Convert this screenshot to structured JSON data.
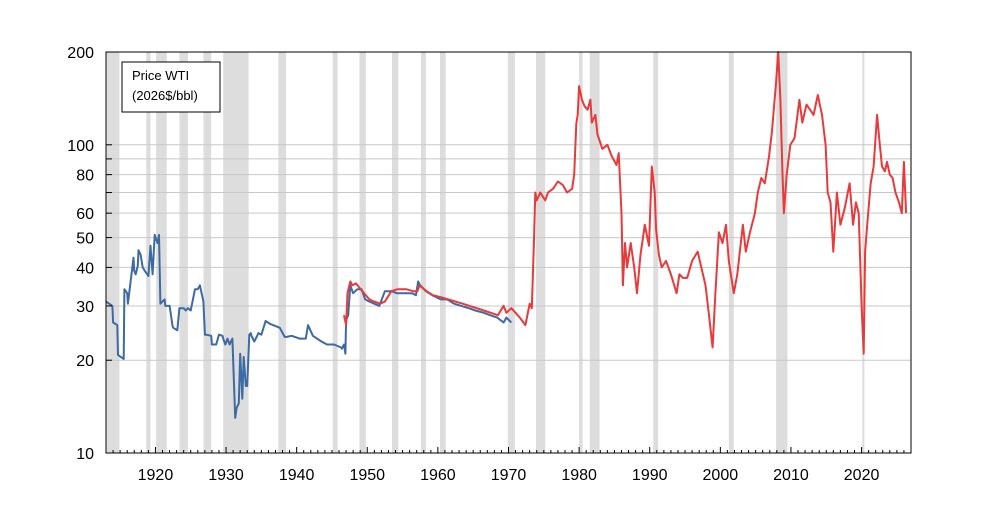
{
  "chart_data": {
    "type": "line",
    "title": "",
    "xlabel": "",
    "ylabel": "",
    "y_scale": "log",
    "xlim": [
      1913,
      2027
    ],
    "ylim": [
      10,
      200
    ],
    "x_ticks": [
      1920,
      1930,
      1940,
      1950,
      1960,
      1970,
      1980,
      1990,
      2000,
      2010,
      2020
    ],
    "y_tick_labels": [
      "10",
      "20",
      "30",
      "40",
      "50",
      "60",
      "80",
      "100",
      "200"
    ],
    "y_ticks": [
      10,
      20,
      30,
      40,
      50,
      60,
      80,
      100,
      200
    ],
    "y_minor_gridlines": [
      70,
      90
    ],
    "grid": true,
    "legend": {
      "position": "top-left",
      "lines": [
        "Price WTI",
        "(2026$/bbl)"
      ]
    },
    "recession_bands": [
      [
        1913.1,
        1914.9
      ],
      [
        1918.7,
        1919.3
      ],
      [
        1920.1,
        1921.6
      ],
      [
        1923.4,
        1924.6
      ],
      [
        1926.8,
        1927.9
      ],
      [
        1929.6,
        1933.2
      ],
      [
        1937.4,
        1938.5
      ],
      [
        1945.1,
        1945.8
      ],
      [
        1948.9,
        1949.8
      ],
      [
        1953.5,
        1954.4
      ],
      [
        1957.6,
        1958.3
      ],
      [
        1960.3,
        1961.1
      ],
      [
        1969.9,
        1970.9
      ],
      [
        1973.9,
        1975.2
      ],
      [
        1980.0,
        1980.5
      ],
      [
        1981.5,
        1982.9
      ],
      [
        1990.5,
        1991.2
      ],
      [
        2001.2,
        2001.9
      ],
      [
        2007.9,
        2009.5
      ],
      [
        2020.1,
        2020.4
      ]
    ],
    "series": [
      {
        "color": "#3d6aa3",
        "x": [
          1913.0,
          1913.9,
          1914.0,
          1914.6,
          1914.7,
          1915.5,
          1915.6,
          1916.0,
          1916.1,
          1916.9,
          1917.0,
          1917.2,
          1917.5,
          1917.6,
          1917.9,
          1918.2,
          1918.5,
          1919.0,
          1919.3,
          1919.6,
          1919.9,
          1920.3,
          1920.5,
          1920.7,
          1921.0,
          1921.3,
          1921.4,
          1922.0,
          1922.4,
          1922.5,
          1923.1,
          1923.4,
          1924.0,
          1924.3,
          1924.6,
          1925.0,
          1925.6,
          1926.0,
          1926.3,
          1926.8,
          1927.0,
          1927.2,
          1927.9,
          1928.0,
          1928.6,
          1929.0,
          1929.5,
          1929.6,
          1929.9,
          1930.2,
          1930.5,
          1930.9,
          1931.3,
          1931.5,
          1931.8,
          1932.0,
          1932.3,
          1932.5,
          1932.8,
          1933.0,
          1933.3,
          1933.5,
          1933.6,
          1934.0,
          1934.6,
          1935.0,
          1935.6,
          1936.3,
          1937.0,
          1937.6,
          1938.3,
          1938.6,
          1939.3,
          1940.4,
          1941.3,
          1941.6,
          1942.3,
          1943.5,
          1944.3,
          1945.3,
          1946.3,
          1946.4,
          1946.7,
          1946.9,
          1947.0,
          1947.3,
          1947.6,
          1948.0,
          1948.6,
          1949.2,
          1949.7,
          1950.3,
          1951.0,
          1951.7,
          1952.5,
          1953.4,
          1954.2,
          1955.4,
          1956.3,
          1956.9,
          1957.2,
          1957.5,
          1958.3,
          1959.2,
          1960.4,
          1961.3,
          1962.3,
          1963.3,
          1964.4,
          1965.3,
          1966.5,
          1967.4,
          1968.4,
          1969.3,
          1969.7,
          1970.4
        ],
        "values": [
          31,
          30,
          26.5,
          26,
          20.8,
          20.2,
          34,
          33,
          30.5,
          43,
          39,
          38,
          40.5,
          45.5,
          44,
          40,
          39,
          37.5,
          47,
          38,
          51,
          48,
          51,
          30.5,
          31,
          31.5,
          30,
          30,
          26,
          25.5,
          25,
          29.5,
          29.5,
          29,
          29.5,
          29,
          34,
          34,
          35,
          31,
          24.2,
          24.2,
          24,
          22.5,
          22.5,
          24.2,
          24,
          23.5,
          22.5,
          23.5,
          22.5,
          23.5,
          13,
          14,
          14.5,
          21,
          15,
          20.5,
          16.5,
          16.5,
          24.2,
          24.5,
          24,
          23,
          24.5,
          24.2,
          26.8,
          26.2,
          25.8,
          25.5,
          23.8,
          23.8,
          24,
          23.5,
          23.5,
          26,
          24,
          23,
          22.5,
          22.5,
          22,
          21.8,
          22.5,
          21,
          27,
          28,
          35,
          33,
          34,
          34,
          31.5,
          31,
          30.5,
          30,
          33.5,
          33.5,
          33,
          33,
          33,
          32.5,
          36,
          35,
          33.5,
          32.5,
          31.5,
          31.5,
          30.5,
          30,
          29.5,
          29,
          28.5,
          28,
          27.5,
          26.5,
          27.5,
          26.5
        ]
      },
      {
        "color": "#e83a3a",
        "x": [
          1946.7,
          1947.0,
          1947.2,
          1947.6,
          1947.9,
          1948.4,
          1949.3,
          1950.3,
          1951.0,
          1951.8,
          1952.5,
          1953.4,
          1954.3,
          1955.5,
          1956.5,
          1957.1,
          1957.4,
          1958.4,
          1959.3,
          1960.5,
          1961.5,
          1962.5,
          1963.5,
          1964.5,
          1965.5,
          1966.5,
          1967.5,
          1968.5,
          1969.3,
          1969.7,
          1970.4,
          1971.0,
          1971.6,
          1972.4,
          1973.0,
          1973.3,
          1973.6,
          1973.8,
          1974.0,
          1974.5,
          1975.2,
          1975.6,
          1976.3,
          1977.0,
          1977.7,
          1978.3,
          1979.0,
          1979.3,
          1979.6,
          1979.8,
          1980.0,
          1980.4,
          1980.8,
          1981.2,
          1981.6,
          1981.8,
          1982.3,
          1982.6,
          1983.3,
          1984.0,
          1984.6,
          1985.3,
          1985.6,
          1986.0,
          1986.2,
          1986.5,
          1986.8,
          1987.3,
          1987.8,
          1988.2,
          1988.7,
          1989.3,
          1989.9,
          1990.3,
          1990.7,
          1990.9,
          1991.3,
          1991.7,
          1992.3,
          1993.0,
          1993.8,
          1994.2,
          1994.7,
          1995.3,
          1996.0,
          1996.8,
          1997.3,
          1997.9,
          1998.4,
          1998.9,
          1999.3,
          1999.8,
          2000.3,
          2000.8,
          2001.2,
          2001.9,
          2002.4,
          2002.9,
          2003.2,
          2003.6,
          2004.2,
          2004.9,
          2005.3,
          2005.8,
          2006.3,
          2006.9,
          2007.3,
          2007.9,
          2008.2,
          2008.5,
          2008.8,
          2009.0,
          2009.4,
          2009.9,
          2010.5,
          2011.2,
          2011.6,
          2012.2,
          2012.7,
          2013.2,
          2013.8,
          2014.4,
          2014.9,
          2015.2,
          2015.6,
          2016.0,
          2016.5,
          2017.0,
          2017.6,
          2018.3,
          2018.8,
          2019.2,
          2019.6,
          2020.0,
          2020.3,
          2020.5,
          2020.8,
          2021.3,
          2021.7,
          2022.2,
          2022.5,
          2022.9,
          2023.3,
          2023.6,
          2024.0,
          2024.4,
          2024.8,
          2025.3,
          2025.7,
          2026.0,
          2026.3
        ],
        "values": [
          28,
          26,
          33,
          36,
          35,
          35.5,
          33.5,
          31.5,
          31,
          30.5,
          31,
          33.5,
          34,
          34,
          33.5,
          33.5,
          35,
          33.5,
          32.5,
          32,
          31.5,
          31,
          30.5,
          30,
          29.5,
          29,
          28.5,
          28,
          30,
          28.5,
          29.5,
          28.5,
          27.5,
          26,
          30.5,
          29.5,
          48,
          70,
          66,
          70,
          66,
          70,
          72,
          76,
          74,
          70,
          72,
          80,
          117,
          125,
          155,
          140,
          133,
          130,
          140,
          118,
          125,
          108,
          97,
          100,
          92,
          86,
          94,
          60,
          35,
          48,
          40,
          48,
          40,
          33,
          44,
          55,
          47,
          85,
          70,
          53,
          44,
          40,
          42,
          38,
          33,
          38,
          37,
          37,
          42,
          45,
          40,
          35,
          28,
          22,
          33,
          52,
          48,
          55,
          42,
          33,
          38,
          48,
          55,
          45,
          52,
          60,
          70,
          78,
          75,
          92,
          110,
          160,
          200,
          140,
          80,
          60,
          80,
          100,
          105,
          140,
          118,
          135,
          130,
          125,
          145,
          125,
          100,
          70,
          65,
          45,
          70,
          55,
          62,
          75,
          55,
          65,
          60,
          30,
          21,
          45,
          55,
          75,
          85,
          125,
          105,
          85,
          82,
          88,
          80,
          78,
          70,
          65,
          60,
          88,
          60
        ]
      }
    ]
  }
}
